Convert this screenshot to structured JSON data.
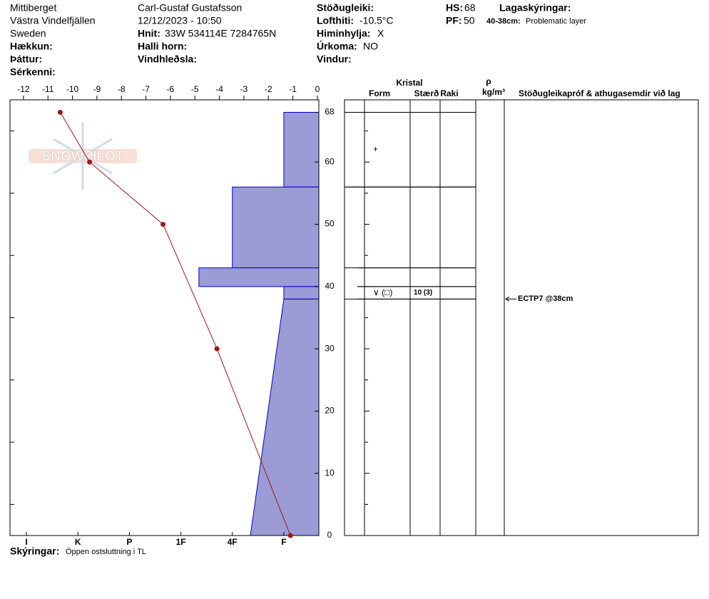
{
  "header": {
    "place": "Mittiberget",
    "region": "Västra Vindelfjällen",
    "country": "Sweden",
    "elevation_label": "Hækkun:",
    "aspect_label": "Þáttur:",
    "features_label": "Sérkenni:",
    "observer": "Carl-Gustaf Gustafsson",
    "datetime": "12/12/2023 - 10:50",
    "coords_label": "Hnit:",
    "coords": "33W 534114E 7284765N",
    "slope_label": "Halli horn:",
    "wind_loading_label": "Vindhleðsla:",
    "stability_label": "Stöðugleiki:",
    "air_temp_label": "Lofthiti:",
    "air_temp": "-10.5°C",
    "sky_label": "Himinhylja:",
    "sky": "X",
    "precip_label": "Úrkoma:",
    "precip": "NO",
    "wind_label": "Vindur:",
    "hs_label": "HS:",
    "hs": 68,
    "pf_label": "PF:",
    "pf": 50,
    "layer_notes_label": "Lagaskýringar:",
    "layer_note_range": "40-38cm:",
    "layer_note": "Problematic layer"
  },
  "chart_data": {
    "type": "snow-profile",
    "watermark": "SNOWPILOT",
    "temperature": {
      "xlim": [
        -12.55,
        0.06
      ],
      "xticks": [
        -12,
        -11,
        -10,
        -9,
        -8,
        -7,
        -6,
        -5,
        -4,
        -3,
        -2,
        -1,
        0
      ],
      "depths": [
        68,
        60,
        50,
        30,
        0
      ],
      "values": [
        -10.5,
        -9.3,
        -6.3,
        -4.1,
        -1.1
      ],
      "color": "#a01818"
    },
    "ylim": [
      0,
      70
    ],
    "yticks": [
      0,
      10,
      20,
      30,
      40,
      50,
      60,
      68
    ],
    "yminor": [
      5,
      15,
      25,
      35,
      45,
      55,
      65
    ],
    "hardness": {
      "xlim": [
        6.32,
        0.32
      ],
      "xticks": [
        {
          "value": 6,
          "label": "I"
        },
        {
          "value": 5,
          "label": "K"
        },
        {
          "value": 4,
          "label": "P"
        },
        {
          "value": 3,
          "label": "1F"
        },
        {
          "value": 2,
          "label": "4F"
        },
        {
          "value": 1,
          "label": "F"
        }
      ],
      "color": "#9b9bd6",
      "edge": "#0000c8"
    },
    "layers": [
      {
        "top": 68,
        "bottom": 56,
        "hardness_top": 1,
        "hardness_bottom": 1,
        "grain": "+"
      },
      {
        "top": 56,
        "bottom": 43,
        "hardness_top": 2,
        "hardness_bottom": 2
      },
      {
        "top": 43,
        "bottom": 40,
        "hardness_top": 2.65,
        "hardness_bottom": 2.65
      },
      {
        "top": 40,
        "bottom": 38,
        "hardness_top": 1,
        "hardness_bottom": 1,
        "grain": "∨ (□)",
        "size": "10 (3)"
      },
      {
        "top": 38,
        "bottom": 0,
        "hardness_top": 1,
        "hardness_bottom": 1.65
      }
    ],
    "tests": [
      {
        "label": "ECTP7 @38cm",
        "depth": 38
      }
    ],
    "table_headers": {
      "crystal": "Kristal",
      "form": "Form",
      "size": "Stærð",
      "moisture": "Raki",
      "rho": "ρ",
      "density_unit": "kg/m³",
      "comments": "Stöðugleikapróf & athugasemdir við lag"
    },
    "footer": {
      "label": "Skýringar:",
      "text": "Öppen ostsluttning i TL"
    }
  }
}
